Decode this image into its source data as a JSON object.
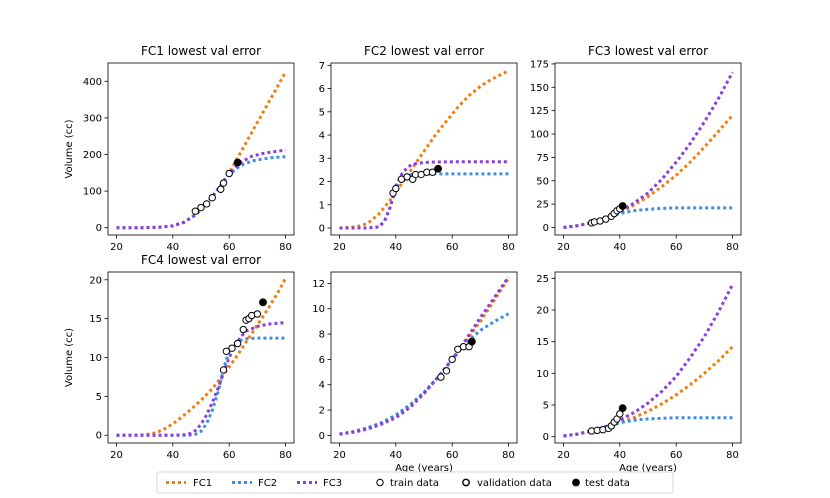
{
  "legend": {
    "entries": [
      {
        "label": "FC1",
        "kind": "line",
        "color": "#f07f10"
      },
      {
        "label": "FC2",
        "kind": "line",
        "color": "#3b8ee0"
      },
      {
        "label": "FC3",
        "kind": "line",
        "color": "#8a3de0"
      },
      {
        "label": "train data",
        "kind": "open-marker"
      },
      {
        "label": "validation data",
        "kind": "open-marker-thick"
      },
      {
        "label": "test data",
        "kind": "filled-marker"
      }
    ]
  },
  "colors": {
    "FC1": "#f07f10",
    "FC2": "#3b8ee0",
    "FC3": "#8a3de0"
  },
  "chart_data": [
    {
      "type": "line",
      "title": "FC1 lowest val error",
      "xlabel": "",
      "ylabel": "Volume (cc)",
      "xlim": [
        17,
        83
      ],
      "ylim": [
        -20,
        450
      ],
      "xticks": [
        20,
        40,
        60,
        80
      ],
      "yticks": [
        0,
        100,
        200,
        300,
        400
      ],
      "series": [
        {
          "name": "FC1",
          "x": [
            20,
            30,
            35,
            40,
            44,
            48,
            52,
            56,
            60,
            64,
            68,
            72,
            76,
            80
          ],
          "y": [
            0,
            0,
            1,
            5,
            15,
            35,
            65,
            105,
            150,
            205,
            260,
            315,
            370,
            425
          ]
        },
        {
          "name": "FC2",
          "x": [
            20,
            30,
            35,
            40,
            44,
            48,
            52,
            56,
            60,
            64,
            68,
            72,
            76,
            80
          ],
          "y": [
            0,
            0,
            1,
            5,
            15,
            35,
            65,
            105,
            145,
            170,
            182,
            188,
            192,
            194
          ]
        },
        {
          "name": "FC3",
          "x": [
            20,
            30,
            35,
            40,
            44,
            48,
            52,
            56,
            60,
            64,
            68,
            72,
            76,
            80
          ],
          "y": [
            0,
            0,
            1,
            5,
            15,
            35,
            65,
            105,
            148,
            178,
            195,
            203,
            208,
            212
          ]
        }
      ],
      "train": {
        "x": [
          48,
          50,
          52,
          54,
          57,
          58,
          60
        ],
        "y": [
          45,
          55,
          65,
          82,
          105,
          122,
          148
        ]
      },
      "test": {
        "x": [
          63
        ],
        "y": [
          178
        ]
      }
    },
    {
      "type": "line",
      "title": "FC2 lowest val error",
      "xlabel": "",
      "ylabel": "",
      "xlim": [
        17,
        83
      ],
      "ylim": [
        -0.3,
        7.1
      ],
      "xticks": [
        20,
        40,
        60,
        80
      ],
      "yticks": [
        0,
        1,
        2,
        3,
        4,
        5,
        6,
        7
      ],
      "series": [
        {
          "name": "FC1",
          "x": [
            20,
            26,
            30,
            34,
            38,
            42,
            46,
            50,
            54,
            58,
            62,
            66,
            70,
            74,
            78,
            80
          ],
          "y": [
            0,
            0.05,
            0.2,
            0.6,
            1.2,
            1.9,
            2.6,
            3.3,
            4.0,
            4.6,
            5.2,
            5.7,
            6.1,
            6.4,
            6.65,
            6.75
          ]
        },
        {
          "name": "FC2",
          "x": [
            20,
            30,
            34,
            36,
            38,
            40,
            42,
            44,
            46,
            50,
            54,
            60,
            70,
            80
          ],
          "y": [
            0,
            0,
            0.05,
            0.3,
            0.9,
            1.7,
            2.1,
            2.25,
            2.3,
            2.32,
            2.33,
            2.33,
            2.33,
            2.33
          ]
        },
        {
          "name": "FC3",
          "x": [
            20,
            30,
            34,
            36,
            38,
            40,
            42,
            44,
            46,
            50,
            54,
            60,
            70,
            80
          ],
          "y": [
            0,
            0,
            0.05,
            0.3,
            0.9,
            1.8,
            2.3,
            2.6,
            2.75,
            2.82,
            2.84,
            2.85,
            2.85,
            2.85
          ]
        }
      ],
      "train": {
        "x": [
          39,
          40,
          42,
          44,
          46,
          47,
          49,
          51,
          53
        ],
        "y": [
          1.5,
          1.7,
          2.1,
          2.2,
          2.1,
          2.3,
          2.3,
          2.4,
          2.4
        ]
      },
      "test": {
        "x": [
          55
        ],
        "y": [
          2.55
        ]
      }
    },
    {
      "type": "line",
      "title": "FC3 lowest val error",
      "xlabel": "",
      "ylabel": "",
      "xlim": [
        17,
        83
      ],
      "ylim": [
        -8,
        176
      ],
      "xticks": [
        20,
        40,
        60,
        80
      ],
      "yticks": [
        0,
        25,
        50,
        75,
        100,
        125,
        150,
        175
      ],
      "series": [
        {
          "name": "FC1",
          "x": [
            20,
            25,
            30,
            35,
            40,
            45,
            50,
            55,
            60,
            65,
            70,
            75,
            80
          ],
          "y": [
            0,
            2,
            5,
            9,
            16,
            24,
            33,
            44,
            56,
            70,
            86,
            103,
            120
          ]
        },
        {
          "name": "FC2",
          "x": [
            20,
            25,
            30,
            35,
            40,
            45,
            50,
            55,
            60,
            65,
            70,
            75,
            80
          ],
          "y": [
            0,
            2,
            5,
            10,
            15,
            18,
            19.5,
            20.5,
            21,
            21,
            21,
            21,
            21
          ]
        },
        {
          "name": "FC3",
          "x": [
            20,
            25,
            30,
            35,
            40,
            45,
            50,
            55,
            60,
            65,
            70,
            75,
            80
          ],
          "y": [
            0,
            2,
            5,
            10,
            17,
            26,
            37,
            52,
            70,
            90,
            113,
            138,
            166
          ]
        }
      ],
      "train": {
        "x": [
          30,
          31,
          33,
          35,
          37,
          38,
          39,
          40
        ],
        "y": [
          5,
          6,
          7,
          9,
          12,
          15,
          18,
          20
        ]
      },
      "test": {
        "x": [
          41
        ],
        "y": [
          23
        ]
      }
    },
    {
      "type": "line",
      "title": "FC4 lowest val error",
      "xlabel": "",
      "ylabel": "Volume (cc)",
      "xlim": [
        17,
        83
      ],
      "ylim": [
        -1,
        21
      ],
      "xticks": [
        20,
        40,
        60,
        80
      ],
      "yticks": [
        0,
        5,
        10,
        15,
        20
      ],
      "series": [
        {
          "name": "FC1",
          "x": [
            20,
            30,
            34,
            38,
            42,
            46,
            50,
            54,
            58,
            62,
            66,
            70,
            74,
            78,
            80
          ],
          "y": [
            0,
            0.05,
            0.3,
            1.0,
            2.0,
            3.2,
            4.5,
            6.0,
            7.8,
            9.8,
            12.0,
            14.2,
            16.4,
            18.8,
            20.2
          ]
        },
        {
          "name": "FC2",
          "x": [
            20,
            40,
            44,
            46,
            48,
            50,
            52,
            54,
            56,
            58,
            60,
            62,
            64,
            66,
            70,
            74,
            80
          ],
          "y": [
            0,
            0,
            0,
            0.02,
            0.1,
            0.5,
            1.5,
            3.2,
            5.5,
            8.5,
            10.8,
            11.8,
            12.2,
            12.4,
            12.5,
            12.5,
            12.5
          ]
        },
        {
          "name": "FC3",
          "x": [
            20,
            40,
            44,
            46,
            48,
            50,
            52,
            54,
            56,
            58,
            60,
            62,
            64,
            66,
            70,
            74,
            80
          ],
          "y": [
            0,
            0,
            0.05,
            0.2,
            0.6,
            1.4,
            2.6,
            4.2,
            6.0,
            8.0,
            10.0,
            11.5,
            12.6,
            13.4,
            14.0,
            14.3,
            14.5
          ]
        }
      ],
      "train": {
        "x": [
          58,
          59,
          61,
          63,
          65,
          66,
          67,
          68,
          70
        ],
        "y": [
          8.4,
          10.8,
          11.2,
          11.8,
          13.6,
          14.8,
          15.0,
          15.4,
          15.6
        ]
      },
      "test": {
        "x": [
          72
        ],
        "y": [
          17.1
        ]
      }
    },
    {
      "type": "line",
      "title": "",
      "xlabel": "Age (years)",
      "ylabel": "",
      "xlim": [
        17,
        83
      ],
      "ylim": [
        -0.6,
        12.9
      ],
      "xticks": [
        20,
        40,
        60,
        80
      ],
      "yticks": [
        0,
        2,
        4,
        6,
        8,
        10,
        12
      ],
      "series": [
        {
          "name": "FC1",
          "x": [
            20,
            25,
            30,
            35,
            40,
            45,
            50,
            55,
            60,
            65,
            70,
            75,
            80
          ],
          "y": [
            0.1,
            0.3,
            0.6,
            1.0,
            1.6,
            2.4,
            3.4,
            4.6,
            6.0,
            7.5,
            9.0,
            10.7,
            12.4
          ]
        },
        {
          "name": "FC2",
          "x": [
            20,
            25,
            30,
            35,
            40,
            45,
            50,
            55,
            60,
            65,
            70,
            75,
            80
          ],
          "y": [
            0.1,
            0.3,
            0.6,
            1.0,
            1.6,
            2.4,
            3.4,
            4.6,
            6.0,
            7.3,
            8.3,
            9.0,
            9.6
          ]
        },
        {
          "name": "FC3",
          "x": [
            20,
            25,
            30,
            35,
            40,
            45,
            50,
            55,
            60,
            65,
            70,
            75,
            80
          ],
          "y": [
            0.1,
            0.25,
            0.5,
            0.9,
            1.4,
            2.2,
            3.3,
            4.6,
            6.0,
            7.6,
            9.3,
            10.9,
            12.5
          ]
        }
      ],
      "train": {
        "x": [
          56,
          58,
          60,
          62,
          64,
          66
        ],
        "y": [
          4.6,
          5.1,
          6.0,
          6.8,
          7.0,
          7.0
        ]
      },
      "test": {
        "x": [
          67
        ],
        "y": [
          7.4
        ]
      }
    },
    {
      "type": "line",
      "title": "",
      "xlabel": "Age (years)",
      "ylabel": "",
      "xlim": [
        17,
        83
      ],
      "ylim": [
        -1,
        26
      ],
      "xticks": [
        20,
        40,
        60,
        80
      ],
      "yticks": [
        0,
        5,
        10,
        15,
        20,
        25
      ],
      "series": [
        {
          "name": "FC1",
          "x": [
            20,
            25,
            30,
            35,
            40,
            45,
            50,
            55,
            60,
            65,
            70,
            75,
            80
          ],
          "y": [
            0.1,
            0.4,
            0.9,
            1.5,
            2.2,
            3.0,
            4.0,
            5.2,
            6.6,
            8.2,
            10.0,
            12.0,
            14.2
          ]
        },
        {
          "name": "FC2",
          "x": [
            20,
            25,
            30,
            35,
            40,
            45,
            50,
            55,
            60,
            65,
            70,
            75,
            80
          ],
          "y": [
            0.1,
            0.4,
            0.9,
            1.5,
            2.2,
            2.6,
            2.8,
            2.9,
            3.0,
            3.0,
            3.0,
            3.0,
            3.0
          ]
        },
        {
          "name": "FC3",
          "x": [
            20,
            25,
            30,
            35,
            40,
            45,
            50,
            55,
            60,
            65,
            70,
            75,
            80
          ],
          "y": [
            0.1,
            0.4,
            0.9,
            1.6,
            2.6,
            3.8,
            5.3,
            7.2,
            9.5,
            12.5,
            15.8,
            19.7,
            24.0
          ]
        }
      ],
      "train": {
        "x": [
          30,
          32,
          34,
          36,
          37,
          38,
          39,
          40
        ],
        "y": [
          0.9,
          1.0,
          1.1,
          1.3,
          1.7,
          2.3,
          2.8,
          3.6
        ]
      },
      "test": {
        "x": [
          41
        ],
        "y": [
          4.5
        ]
      }
    }
  ]
}
